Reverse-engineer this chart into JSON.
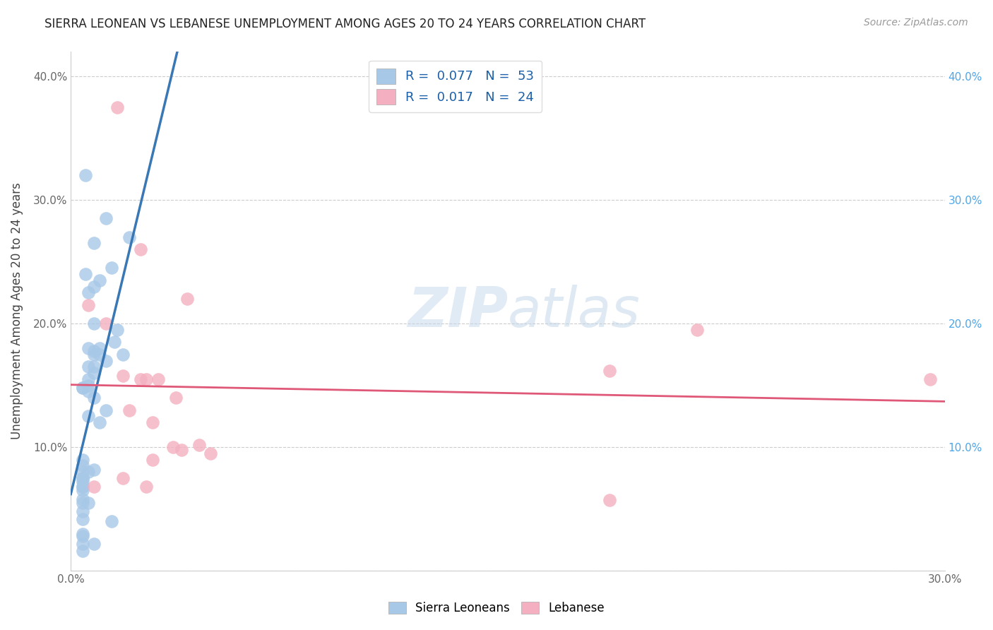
{
  "title": "SIERRA LEONEAN VS LEBANESE UNEMPLOYMENT AMONG AGES 20 TO 24 YEARS CORRELATION CHART",
  "source": "Source: ZipAtlas.com",
  "ylabel": "Unemployment Among Ages 20 to 24 years",
  "background_color": "#ffffff",
  "watermark": "ZIPatlas",
  "sierra_R": "0.077",
  "sierra_N": "53",
  "lebanese_R": "0.017",
  "lebanese_N": "24",
  "sierra_color": "#a8c8e8",
  "lebanese_color": "#f4b0c0",
  "sierra_line_color": "#3a78b5",
  "lebanese_line_color": "#e05878",
  "sierra_points_x": [
    0.005,
    0.012,
    0.02,
    0.008,
    0.014,
    0.005,
    0.01,
    0.008,
    0.006,
    0.016,
    0.008,
    0.015,
    0.006,
    0.01,
    0.008,
    0.008,
    0.012,
    0.006,
    0.008,
    0.006,
    0.004,
    0.006,
    0.004,
    0.01,
    0.008,
    0.006,
    0.008,
    0.012,
    0.006,
    0.01,
    0.018,
    0.004,
    0.004,
    0.006,
    0.008,
    0.004,
    0.004,
    0.004,
    0.004,
    0.004,
    0.004,
    0.004,
    0.004,
    0.004,
    0.004,
    0.004,
    0.014,
    0.004,
    0.004,
    0.008,
    0.006,
    0.004,
    0.004
  ],
  "sierra_points_y": [
    0.32,
    0.285,
    0.27,
    0.265,
    0.245,
    0.24,
    0.235,
    0.23,
    0.225,
    0.195,
    0.2,
    0.185,
    0.18,
    0.18,
    0.178,
    0.175,
    0.17,
    0.165,
    0.16,
    0.155,
    0.148,
    0.15,
    0.148,
    0.175,
    0.165,
    0.145,
    0.14,
    0.13,
    0.125,
    0.12,
    0.175,
    0.08,
    0.075,
    0.08,
    0.082,
    0.075,
    0.072,
    0.068,
    0.068,
    0.065,
    0.09,
    0.085,
    0.058,
    0.055,
    0.048,
    0.042,
    0.04,
    0.03,
    0.028,
    0.022,
    0.055,
    0.022,
    0.016
  ],
  "lebanese_points_x": [
    0.016,
    0.024,
    0.04,
    0.006,
    0.012,
    0.024,
    0.03,
    0.036,
    0.02,
    0.028,
    0.035,
    0.038,
    0.028,
    0.044,
    0.048,
    0.008,
    0.018,
    0.026,
    0.018,
    0.026,
    0.185,
    0.215,
    0.185,
    0.295
  ],
  "lebanese_points_y": [
    0.375,
    0.26,
    0.22,
    0.215,
    0.2,
    0.155,
    0.155,
    0.14,
    0.13,
    0.12,
    0.1,
    0.098,
    0.09,
    0.102,
    0.095,
    0.068,
    0.075,
    0.068,
    0.158,
    0.155,
    0.162,
    0.195,
    0.057,
    0.155
  ],
  "xlim": [
    0.0,
    0.3
  ],
  "ylim": [
    0.0,
    0.42
  ],
  "x_ticks": [
    0.0,
    0.05,
    0.1,
    0.15,
    0.2,
    0.25,
    0.3
  ],
  "y_ticks": [
    0.0,
    0.1,
    0.2,
    0.3,
    0.4
  ],
  "y_tick_labels": [
    "",
    "10.0%",
    "20.0%",
    "30.0%",
    "40.0%"
  ],
  "x_tick_labels": [
    "0.0%",
    "",
    "",
    "",
    "",
    "",
    "30.0%"
  ],
  "grid_color": "#cccccc",
  "legend_sierra_label": "Sierra Leoneans",
  "legend_lebanese_label": "Lebanese",
  "title_fontsize": 12,
  "tick_fontsize": 11
}
